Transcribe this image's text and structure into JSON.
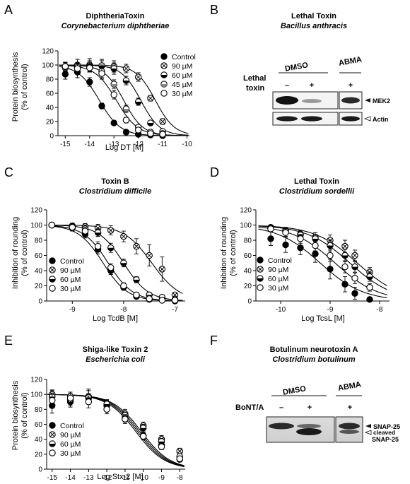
{
  "panels": [
    {
      "letter": "A",
      "title": "DiphtheriaToxin",
      "subtitle": "Corynebacterium diphtheriae",
      "xlabel": "Log DT [M]",
      "ylabel": "Protein biosynthesis",
      "ylabel2": "(% of control)",
      "legend_pos": "top-right"
    },
    {
      "letter": "B",
      "title": "Lethal Toxin",
      "subtitle": "Bacillus anthracis",
      "treatment_label_1": "Lethal",
      "treatment_label_2": "toxin",
      "groups": [
        "DMSO",
        "ABMA"
      ],
      "lanes": [
        "–",
        "+",
        "+"
      ],
      "bands": [
        "MEK2",
        "Actin"
      ]
    },
    {
      "letter": "C",
      "title": "Toxin B",
      "subtitle": "Clostridium difficile",
      "xlabel": "Log TcdB [M]",
      "ylabel": "Inhibition of rounding",
      "ylabel2": "(% of control)",
      "legend_pos": "bottom-left"
    },
    {
      "letter": "D",
      "title": "Lethal Toxin",
      "subtitle": "Clostridium sordellii",
      "xlabel": "Log TcsL [M]",
      "ylabel": "Inhibition of rounding",
      "ylabel2": "(% of control)",
      "legend_pos": "bottom-left"
    },
    {
      "letter": "E",
      "title": "Shiga-like Toxin 2",
      "subtitle": "Escherichia coli",
      "xlabel": "Log Stx-2 [M]",
      "ylabel": "Protein biosynthesis",
      "ylabel2": "(% of control)",
      "legend_pos": "bottom-left"
    },
    {
      "letter": "F",
      "title": "Botulinum neurotoxin A",
      "subtitle": "Clostridium botulinum",
      "treatment_label": "BoNT/A",
      "groups": [
        "DMSO",
        "ABMA"
      ],
      "lanes": [
        "–",
        "+",
        "+"
      ],
      "band_1": "SNAP-25",
      "band_2a": "cleaved",
      "band_2b": "SNAP-25"
    }
  ],
  "legend": [
    "Control",
    "90 µM",
    "60 µM",
    "45 µM",
    "30 µM"
  ],
  "marker_styles": [
    "filled",
    "cross",
    "half-bottom",
    "half-bottom-light",
    "open"
  ],
  "chart_data": [
    {
      "type": "scatter",
      "panel": "A",
      "xlim": [
        -15.3,
        -9.9
      ],
      "ylim": [
        0,
        120
      ],
      "xticks": [
        -15,
        -14,
        -13,
        -12,
        -11,
        -10
      ],
      "yticks": [
        0,
        20,
        40,
        60,
        80,
        100,
        120
      ],
      "x": [
        -15,
        -14.5,
        -14,
        -13.5,
        -13,
        -12.5,
        -12,
        -11.5,
        -11
      ],
      "series": [
        {
          "name": "Control",
          "ec50": -13.6,
          "hill": 1.0,
          "values": [
            87,
            90,
            76,
            42,
            18,
            5,
            2,
            1,
            0
          ],
          "err": [
            7,
            8,
            6,
            4,
            3,
            2,
            1,
            1,
            1
          ]
        },
        {
          "name": "90 µM",
          "ec50": -11.3,
          "hill": 1.1,
          "values": [
            98,
            100,
            100,
            99,
            98,
            95,
            83,
            53,
            20
          ],
          "err": [
            6,
            8,
            9,
            7,
            8,
            6,
            6,
            4,
            4
          ]
        },
        {
          "name": "60 µM",
          "ec50": -11.9,
          "hill": 1.1,
          "values": [
            97,
            96,
            98,
            99,
            95,
            78,
            48,
            18,
            6
          ],
          "err": [
            6,
            7,
            8,
            9,
            8,
            6,
            5,
            3,
            2
          ]
        },
        {
          "name": "45 µM",
          "ec50": -12.6,
          "hill": 1.1,
          "values": [
            96,
            97,
            97,
            91,
            73,
            38,
            12,
            5,
            3
          ],
          "err": [
            5,
            6,
            7,
            9,
            6,
            5,
            3,
            2,
            1
          ]
        },
        {
          "name": "30 µM",
          "ec50": -12.9,
          "hill": 1.0,
          "values": [
            98,
            95,
            96,
            88,
            58,
            22,
            8,
            3,
            2
          ],
          "err": [
            5,
            7,
            6,
            8,
            6,
            4,
            3,
            2,
            1
          ]
        }
      ]
    },
    {
      "type": "scatter",
      "panel": "C",
      "xlim": [
        -9.5,
        -6.8
      ],
      "ylim": [
        0,
        120
      ],
      "xticks": [
        -9,
        -8,
        -7
      ],
      "yticks": [
        0,
        20,
        40,
        60,
        80,
        100,
        120
      ],
      "x": [
        -9.4,
        -9,
        -8.75,
        -8.5,
        -8.25,
        -8,
        -7.75,
        -7.5,
        -7.25,
        -7
      ],
      "series": [
        {
          "name": "Control",
          "ec50": -8.4,
          "hill": 1.8,
          "values": [
            100,
            96,
            88,
            68,
            40,
            18,
            6,
            2,
            1,
            0
          ],
          "err": [
            3,
            4,
            5,
            6,
            5,
            4,
            3,
            2,
            1,
            1
          ]
        },
        {
          "name": "90 µM",
          "ec50": -7.45,
          "hill": 1.6,
          "values": [
            100,
            99,
            98,
            96,
            93,
            85,
            72,
            60,
            42,
            8
          ],
          "err": [
            2,
            3,
            4,
            5,
            6,
            7,
            10,
            14,
            16,
            3
          ]
        },
        {
          "name": "60 µM",
          "ec50": -8.0,
          "hill": 1.8,
          "values": [
            100,
            98,
            95,
            90,
            70,
            50,
            28,
            8,
            5,
            2
          ],
          "err": [
            3,
            4,
            5,
            5,
            6,
            5,
            4,
            3,
            2,
            1
          ]
        },
        {
          "name": "30 µM",
          "ec50": -8.3,
          "hill": 1.8,
          "values": [
            100,
            97,
            92,
            72,
            44,
            20,
            8,
            3,
            1,
            1
          ],
          "err": [
            3,
            4,
            5,
            6,
            5,
            4,
            3,
            2,
            1,
            1
          ]
        }
      ]
    },
    {
      "type": "scatter",
      "panel": "D",
      "xlim": [
        -10.5,
        -7.8
      ],
      "ylim": [
        0,
        120
      ],
      "xticks": [
        -10,
        -9,
        -8
      ],
      "yticks": [
        0,
        20,
        40,
        60,
        80,
        100,
        120
      ],
      "x": [
        -10.2,
        -9.9,
        -9.6,
        -9.3,
        -9.0,
        -8.7,
        -8.5,
        -8.2
      ],
      "series": [
        {
          "name": "Control",
          "ec50": -9.2,
          "hill": 1.0,
          "values": [
            82,
            74,
            70,
            62,
            42,
            22,
            10,
            2
          ],
          "err": [
            9,
            10,
            9,
            11,
            13,
            10,
            8,
            3
          ]
        },
        {
          "name": "90 µM",
          "ec50": -8.45,
          "hill": 1.0,
          "values": [
            97,
            93,
            88,
            84,
            80,
            72,
            60,
            38
          ],
          "err": [
            3,
            4,
            5,
            6,
            7,
            8,
            7,
            6
          ]
        },
        {
          "name": "60 µM",
          "ec50": -8.6,
          "hill": 1.0,
          "values": [
            96,
            92,
            87,
            82,
            73,
            60,
            45,
            32
          ],
          "err": [
            3,
            4,
            5,
            6,
            7,
            8,
            7,
            6
          ]
        },
        {
          "name": "30 µM",
          "ec50": -8.9,
          "hill": 1.0,
          "values": [
            95,
            90,
            82,
            73,
            60,
            45,
            30,
            18
          ],
          "err": [
            4,
            5,
            6,
            7,
            8,
            8,
            7,
            5
          ]
        }
      ]
    },
    {
      "type": "scatter",
      "panel": "E",
      "xlim": [
        -15.3,
        -7.7
      ],
      "ylim": [
        0,
        120
      ],
      "xticks": [
        -15,
        -14,
        -13,
        -12,
        -11,
        -10,
        -9,
        -8
      ],
      "yticks": [
        0,
        20,
        40,
        60,
        80,
        100,
        120
      ],
      "x": [
        -15,
        -14,
        -13,
        -12,
        -11,
        -10,
        -9,
        -8
      ],
      "series": [
        {
          "name": "Control",
          "ec50": -10.4,
          "hill": 0.55,
          "values": [
            85,
            90,
            95,
            85,
            68,
            45,
            32,
            13
          ],
          "err": [
            10,
            7,
            6,
            6,
            5,
            5,
            4,
            3
          ]
        },
        {
          "name": "90 µM",
          "ec50": -10.1,
          "hill": 0.55,
          "values": [
            100,
            93,
            97,
            85,
            74,
            58,
            40,
            24
          ],
          "err": [
            6,
            8,
            10,
            7,
            6,
            5,
            5,
            4
          ]
        },
        {
          "name": "60 µM",
          "ec50": -10.2,
          "hill": 0.55,
          "values": [
            97,
            97,
            96,
            87,
            72,
            55,
            37,
            17
          ],
          "err": [
            8,
            6,
            9,
            6,
            6,
            5,
            4,
            3
          ]
        },
        {
          "name": "30 µM",
          "ec50": -10.3,
          "hill": 0.55,
          "values": [
            92,
            95,
            90,
            80,
            67,
            44,
            30,
            14
          ],
          "err": [
            8,
            6,
            8,
            6,
            6,
            5,
            4,
            3
          ]
        }
      ]
    }
  ]
}
